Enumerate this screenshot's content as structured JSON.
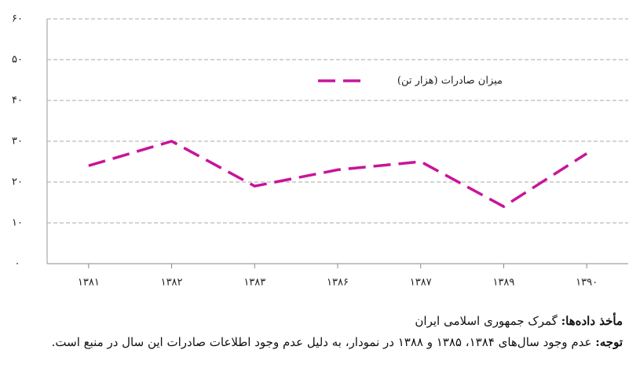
{
  "chart_data": {
    "type": "line",
    "categories": [
      "۱۳۸۱",
      "۱۳۸۲",
      "۱۳۸۳",
      "۱۳۸۶",
      "۱۳۸۷",
      "۱۳۸۹",
      "۱۳۹۰"
    ],
    "series": [
      {
        "name": "میزان صادرات (هزار تن)",
        "color": "#c8149a",
        "values": [
          24,
          30,
          19,
          23,
          25,
          14,
          27
        ]
      }
    ],
    "ylim": [
      0,
      60
    ],
    "yticks": [
      {
        "value": 0,
        "label": "۰"
      },
      {
        "value": 10,
        "label": "۱۰"
      },
      {
        "value": 20,
        "label": "۲۰"
      },
      {
        "value": 30,
        "label": "۳۰"
      },
      {
        "value": 40,
        "label": "۴۰"
      },
      {
        "value": 50,
        "label": "۵۰"
      },
      {
        "value": 60,
        "label": "۶۰"
      }
    ],
    "grid": true
  },
  "notes": {
    "source_label": "مأخذ داده‌ها:",
    "source": "گمرک جمهوری اسلامی ایران",
    "note_label": "توجه:",
    "note": "عدم وجود سال‌های ۱۳۸۴، ۱۳۸۵ و ۱۳۸۸ در نمودار، به دلیل عدم وجود اطلاعات صادرات این سال در منبع است."
  }
}
